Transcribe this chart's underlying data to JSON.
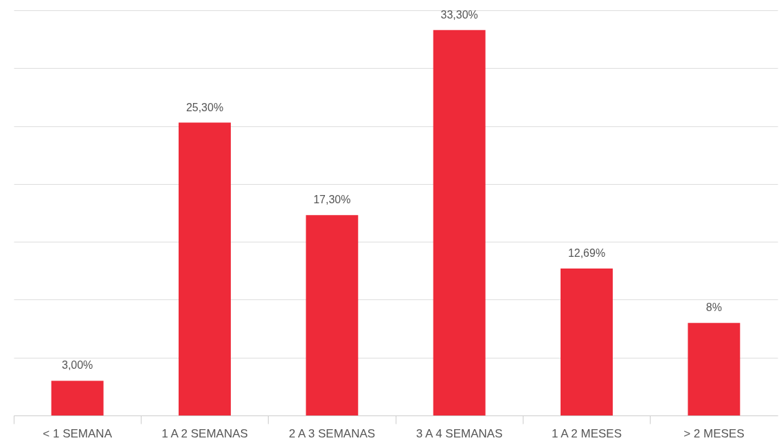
{
  "chart_data": {
    "type": "bar",
    "categories": [
      "< 1 SEMANA",
      "1 A 2 SEMANAS",
      "2 A 3 SEMANAS",
      "3 A 4 SEMANAS",
      "1 A 2 MESES",
      "> 2 MESES"
    ],
    "values": [
      3.0,
      25.3,
      17.3,
      33.3,
      12.69,
      8
    ],
    "value_labels": [
      "3,00%",
      "25,30%",
      "17,30%",
      "33,30%",
      "12,69%",
      "8%"
    ],
    "color": "#ee2a39",
    "ylim": [
      0,
      35
    ],
    "yticks": [
      {
        "value": 0,
        "label": null
      },
      {
        "value": 5,
        "label": null
      },
      {
        "value": 10,
        "label": null
      },
      {
        "value": 15,
        "label": null
      },
      {
        "value": 20,
        "label": null
      },
      {
        "value": 25,
        "label": null
      },
      {
        "value": 30,
        "label": null
      },
      {
        "value": 35,
        "label": null
      }
    ],
    "grid": "y",
    "tick_labels": "x"
  }
}
